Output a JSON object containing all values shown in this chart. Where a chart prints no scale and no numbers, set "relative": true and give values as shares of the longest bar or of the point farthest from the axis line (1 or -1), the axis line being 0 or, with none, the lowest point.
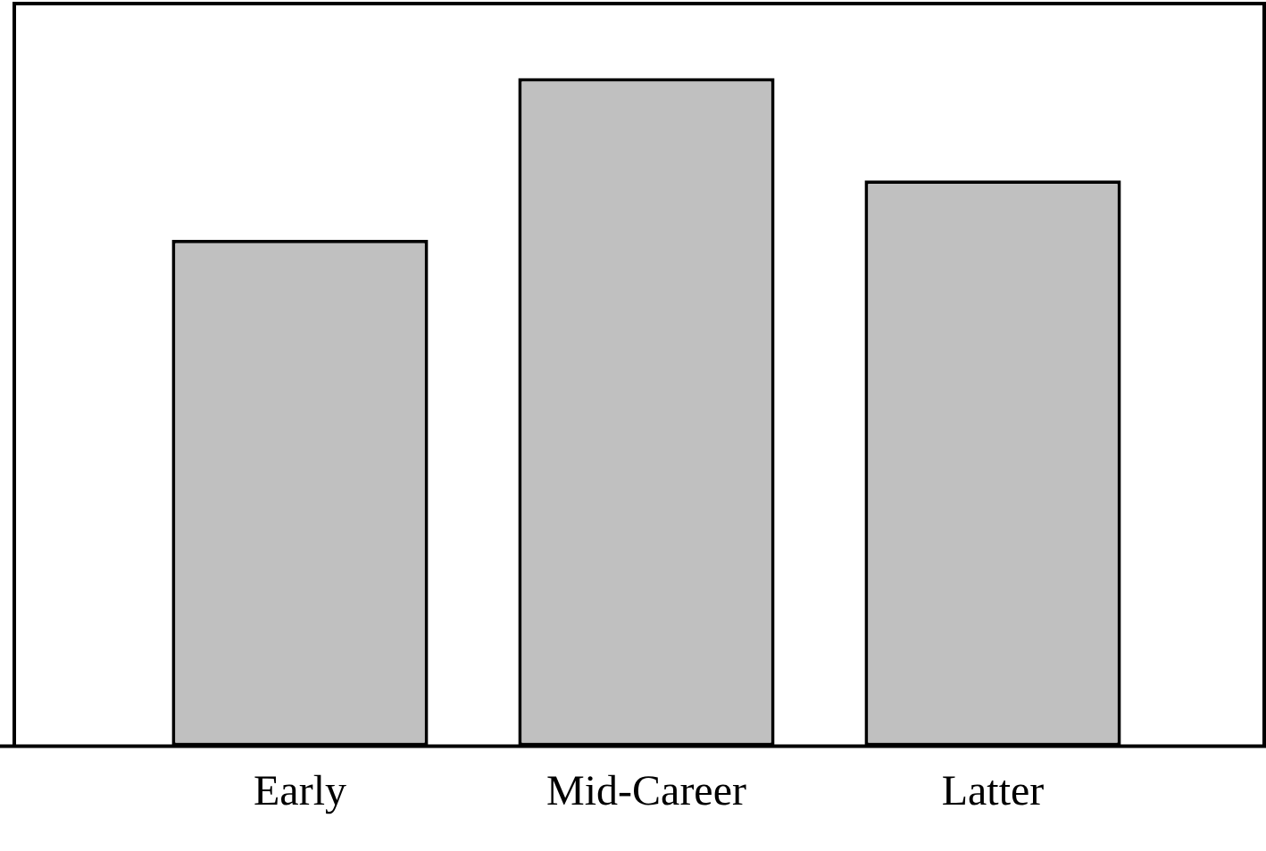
{
  "chart_data": {
    "type": "bar",
    "relative": true,
    "categories": [
      "Early",
      "Mid-Career",
      "Latter"
    ],
    "values": [
      0.758,
      1,
      0.847
    ],
    "color": "#c0c0c0",
    "grid": false,
    "legend": false
  }
}
